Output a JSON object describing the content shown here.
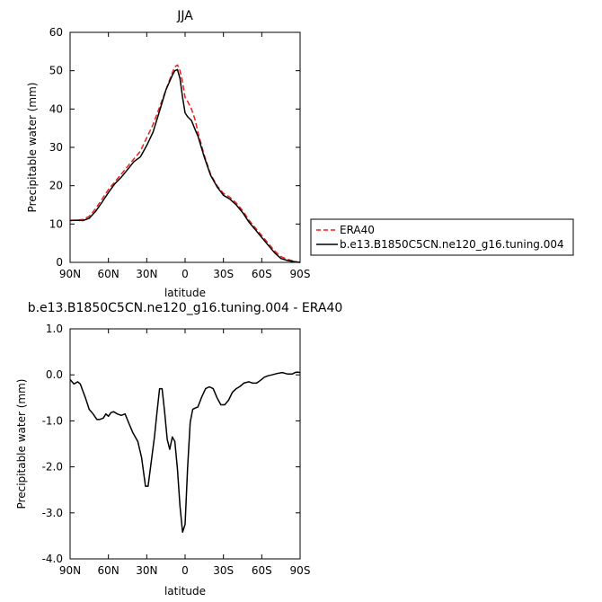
{
  "chart_data": [
    {
      "type": "line",
      "title": "JJA",
      "xlabel": "latitude",
      "ylabel": "Precipitable water (mm)",
      "xlim": [
        90,
        -90
      ],
      "ylim": [
        0,
        60
      ],
      "x_ticks": [
        90,
        60,
        30,
        0,
        -30,
        -60,
        -90
      ],
      "x_tick_labels": [
        "90N",
        "60N",
        "30N",
        "0",
        "30S",
        "60S",
        "90S"
      ],
      "y_ticks": [
        0,
        10,
        20,
        30,
        40,
        50,
        60
      ],
      "y_tick_labels": [
        "0",
        "10",
        "20",
        "30",
        "40",
        "50",
        "60"
      ],
      "legend_position": "right",
      "grid": false,
      "series": [
        {
          "name": "ERA40",
          "color": "#e8201c",
          "dash": "dashed",
          "x": [
            90,
            85,
            80,
            75,
            70,
            65,
            60,
            55,
            50,
            45,
            40,
            35,
            30,
            25,
            20,
            15,
            10,
            8,
            6,
            4,
            2,
            0,
            -2,
            -5,
            -8,
            -10,
            -15,
            -20,
            -25,
            -30,
            -35,
            -40,
            -45,
            -50,
            -55,
            -60,
            -65,
            -70,
            -75,
            -80,
            -85,
            -88,
            -90
          ],
          "y": [
            11,
            11,
            11.2,
            12,
            14,
            16.5,
            19,
            21,
            23,
            25,
            27,
            29,
            32.5,
            36,
            40.5,
            45,
            49.5,
            51,
            51.5,
            50,
            47,
            43,
            42,
            40,
            37,
            34,
            28,
            23,
            20,
            18,
            17,
            15.5,
            13.5,
            11,
            9,
            7,
            5,
            3,
            1.5,
            0.8,
            0.3,
            0.1,
            0
          ]
        },
        {
          "name": "b.e13.B1850C5CN.ne120_g16.tuning.004",
          "color": "#000000",
          "dash": "solid",
          "x": [
            90,
            85,
            80,
            75,
            70,
            65,
            60,
            55,
            50,
            45,
            40,
            35,
            30,
            25,
            20,
            15,
            10,
            8,
            6,
            4,
            2,
            0,
            -2,
            -5,
            -8,
            -10,
            -15,
            -20,
            -25,
            -30,
            -35,
            -40,
            -45,
            -50,
            -55,
            -60,
            -65,
            -70,
            -75,
            -80,
            -85,
            -88,
            -90
          ],
          "y": [
            10.9,
            11,
            10.9,
            11.5,
            13.3,
            15.7,
            18.2,
            20.5,
            22.2,
            24.2,
            26.3,
            27.5,
            30.5,
            34,
            39.5,
            45,
            48.8,
            50,
            50.3,
            48,
            43,
            39,
            38,
            37,
            34.5,
            33,
            27.5,
            22.7,
            19.7,
            17.5,
            16.5,
            15,
            13,
            10.5,
            8.5,
            6.5,
            4.5,
            2.5,
            1,
            0.5,
            0.2,
            0.05,
            0
          ]
        }
      ]
    },
    {
      "type": "line",
      "title": "b.e13.B1850C5CN.ne120_g16.tuning.004 - ERA40",
      "xlabel": "latitude",
      "ylabel": "Precipitable water (mm)",
      "xlim": [
        90,
        -90
      ],
      "ylim": [
        -4.0,
        1.0
      ],
      "x_ticks": [
        90,
        60,
        30,
        0,
        -30,
        -60,
        -90
      ],
      "x_tick_labels": [
        "90N",
        "60N",
        "30N",
        "0",
        "30S",
        "60S",
        "90S"
      ],
      "y_ticks": [
        1.0,
        0.0,
        -1.0,
        -2.0,
        -3.0,
        -4.0
      ],
      "y_tick_labels": [
        "1.0",
        "0.0",
        "-1.0",
        "-2.0",
        "-3.0",
        "-4.0"
      ],
      "grid": false,
      "series": [
        {
          "color": "#000000",
          "x": [
            90,
            87,
            84,
            82,
            80,
            78,
            75,
            72,
            69,
            67,
            64,
            62,
            60,
            58,
            56,
            53,
            50,
            47,
            44,
            41,
            37,
            34,
            31,
            29,
            27,
            24,
            22,
            20,
            18,
            16,
            14,
            12,
            10,
            8,
            6,
            4,
            2,
            0,
            -2,
            -4,
            -6,
            -8,
            -10,
            -13,
            -16,
            -19,
            -22,
            -25,
            -28,
            -31,
            -34,
            -37,
            -40,
            -43,
            -46,
            -50,
            -53,
            -56,
            -59,
            -62,
            -65,
            -68,
            -72,
            -76,
            -80,
            -84,
            -86,
            -88,
            -90
          ],
          "y": [
            -0.1,
            -0.2,
            -0.15,
            -0.2,
            -0.35,
            -0.5,
            -0.75,
            -0.85,
            -0.97,
            -0.97,
            -0.94,
            -0.85,
            -0.9,
            -0.82,
            -0.8,
            -0.85,
            -0.88,
            -0.85,
            -1.05,
            -1.25,
            -1.45,
            -1.8,
            -2.42,
            -2.42,
            -2.0,
            -1.35,
            -0.82,
            -0.3,
            -0.3,
            -0.8,
            -1.4,
            -1.62,
            -1.35,
            -1.45,
            -2.05,
            -2.85,
            -3.42,
            -3.25,
            -2.02,
            -1.03,
            -0.75,
            -0.72,
            -0.7,
            -0.48,
            -0.3,
            -0.26,
            -0.3,
            -0.5,
            -0.65,
            -0.65,
            -0.55,
            -0.38,
            -0.3,
            -0.25,
            -0.18,
            -0.15,
            -0.18,
            -0.18,
            -0.12,
            -0.05,
            -0.02,
            0.0,
            0.03,
            0.05,
            0.02,
            0.02,
            0.05,
            0.06,
            0.05
          ]
        }
      ]
    }
  ]
}
